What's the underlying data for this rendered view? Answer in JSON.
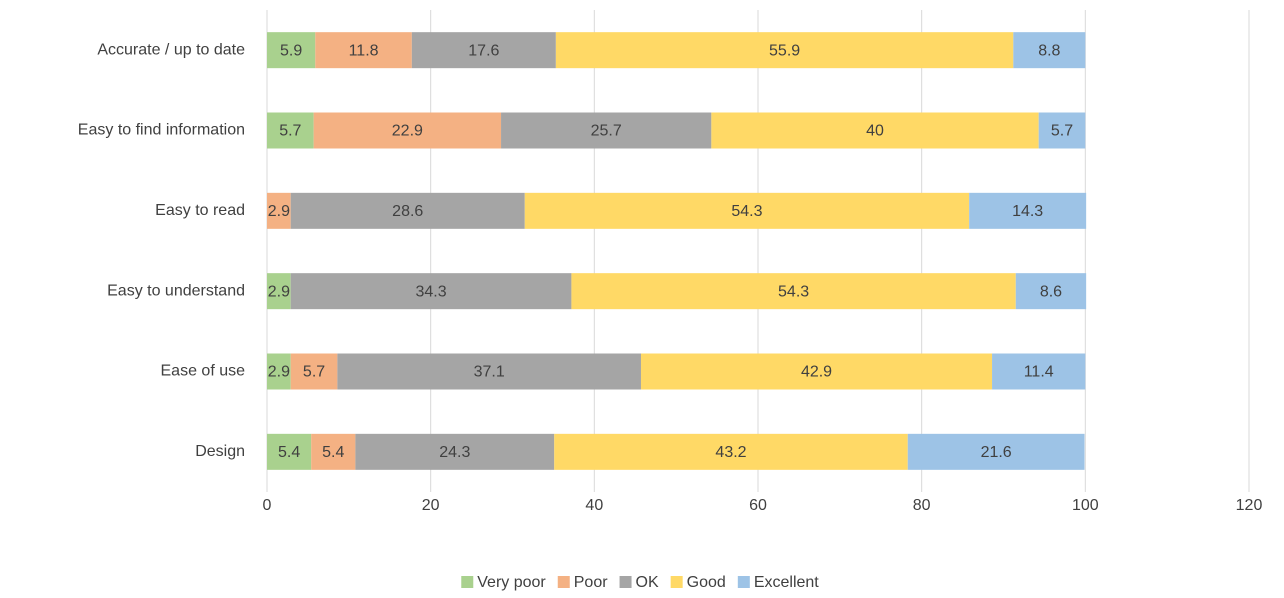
{
  "chart_data": {
    "type": "stacked-bar-horizontal",
    "categories": [
      "Accurate / up to date",
      "Easy to find information",
      "Easy to read",
      "Easy to understand",
      "Ease of use",
      "Design"
    ],
    "series": [
      {
        "name": "Very poor",
        "color": "#a9d18e",
        "values": [
          5.9,
          5.7,
          null,
          2.9,
          2.9,
          5.4
        ]
      },
      {
        "name": "Poor",
        "color": "#f4b183",
        "values": [
          11.8,
          22.9,
          2.9,
          null,
          5.7,
          5.4
        ]
      },
      {
        "name": "OK",
        "color": "#a5a5a5",
        "values": [
          17.6,
          25.7,
          28.6,
          34.3,
          37.1,
          24.3
        ]
      },
      {
        "name": "Good",
        "color": "#ffd966",
        "values": [
          55.9,
          40,
          54.3,
          54.3,
          42.9,
          43.2
        ]
      },
      {
        "name": "Excellent",
        "color": "#9dc3e6",
        "values": [
          8.8,
          5.7,
          14.3,
          8.6,
          11.4,
          21.6
        ]
      }
    ],
    "xlim": [
      0,
      120
    ],
    "xticks": [
      0,
      20,
      40,
      60,
      80,
      100,
      120
    ],
    "grid": true,
    "legend": "bottom"
  }
}
